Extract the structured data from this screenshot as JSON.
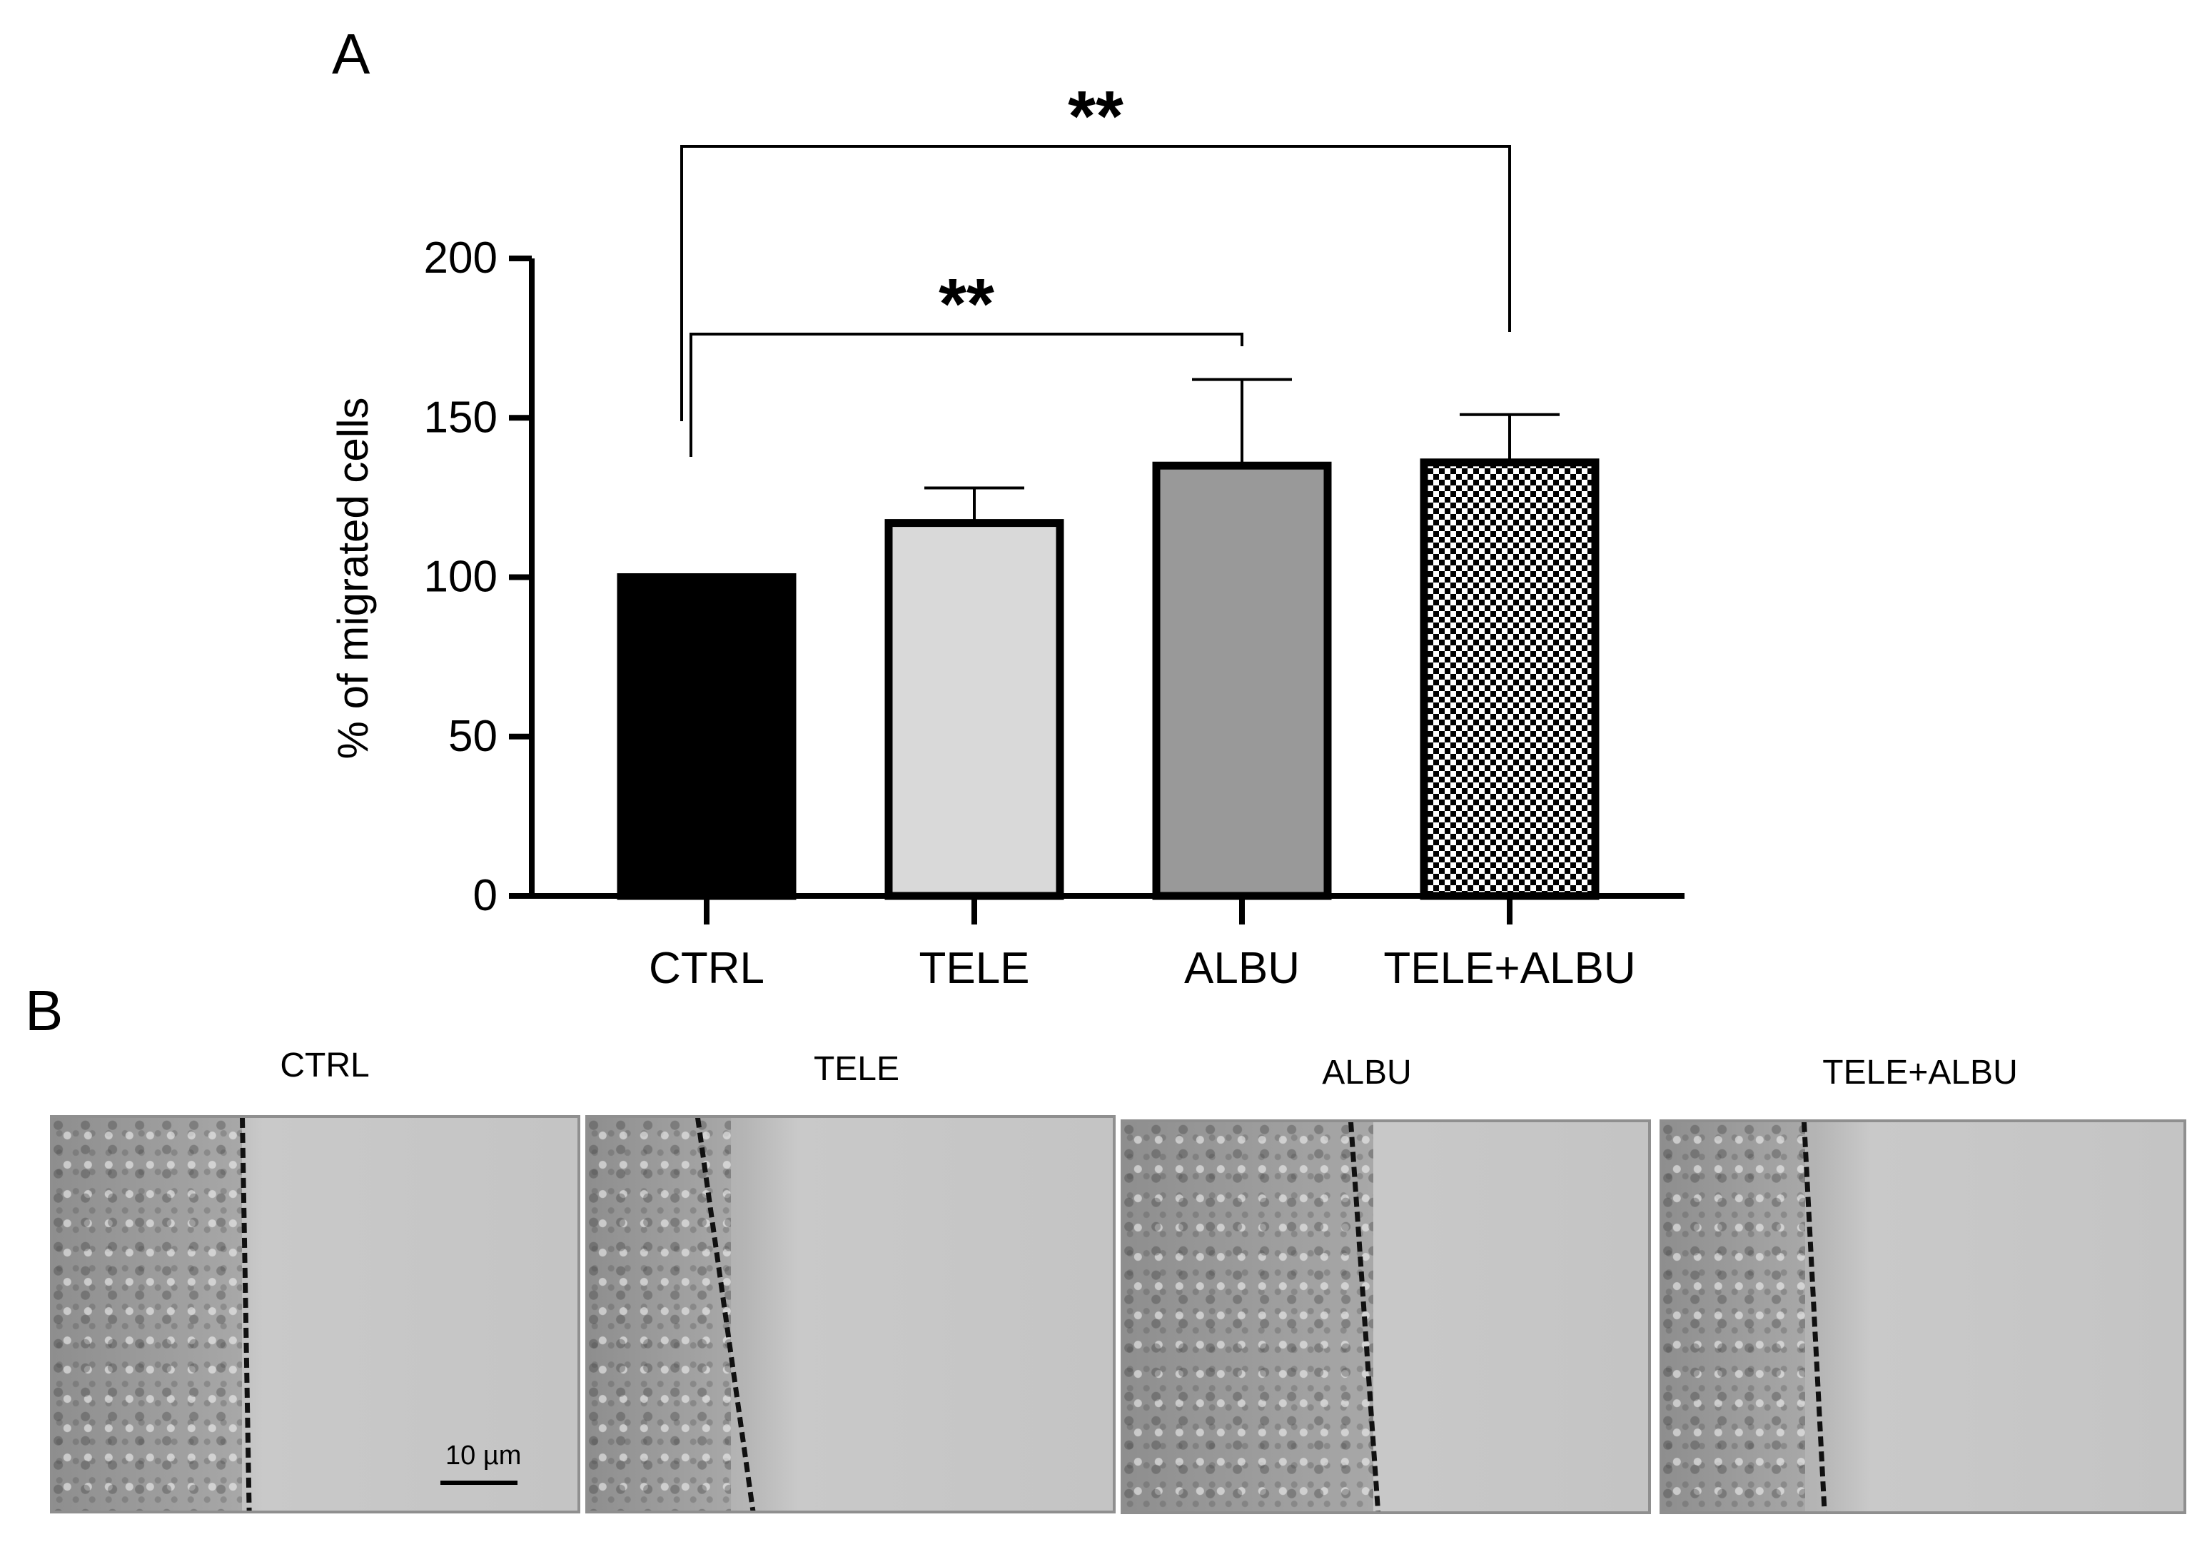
{
  "panel_labels": [
    "A",
    "B"
  ],
  "chart_data": {
    "type": "bar",
    "categories": [
      "CTRL",
      "TELE",
      "ALBU",
      "TELE+ALBU"
    ],
    "values": [
      100,
      117,
      135,
      136
    ],
    "error_upper": [
      100,
      128,
      162,
      151
    ],
    "ylabel": "% of migrated cells",
    "ylim": [
      0,
      200
    ],
    "yticks": [
      "0",
      "50",
      "100",
      "150",
      "200"
    ],
    "bar_fills": [
      "#000000",
      "#d9d9d9",
      "#999999",
      "checkerboard"
    ],
    "significance": [
      {
        "from": "CTRL",
        "to": "ALBU",
        "label": "**"
      },
      {
        "from": "CTRL",
        "to": "TELE+ALBU",
        "label": "**"
      }
    ]
  },
  "micrographs": {
    "titles": [
      "CTRL",
      "TELE",
      "ALBU",
      "TELE+ALBU"
    ],
    "scale_bar_label": "10 µm"
  }
}
